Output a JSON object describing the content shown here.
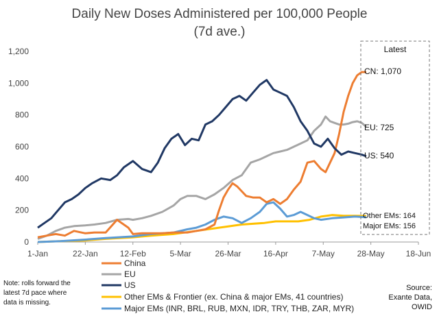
{
  "chart_data": {
    "type": "line",
    "title_line1": "Daily New Doses Administered per 100,000 People",
    "title_line2": "(7d ave.)",
    "x_ticks": [
      "1-Jan",
      "22-Jan",
      "12-Feb",
      "5-Mar",
      "26-Mar",
      "16-Apr",
      "7-May",
      "28-May",
      "18-Jun"
    ],
    "x_tick_days": [
      0,
      21,
      42,
      63,
      84,
      105,
      126,
      147,
      168
    ],
    "y_ticks": [
      "0",
      "200",
      "400",
      "600",
      "800",
      "1,000",
      "1,200"
    ],
    "ylim": [
      0,
      1200
    ],
    "xlim_days": [
      0,
      168
    ],
    "colors": {
      "China": "#ED7D31",
      "EU": "#A5A5A5",
      "US": "#203864",
      "Other EMs": "#FFC000",
      "Major EMs": "#5B9BD5"
    },
    "series": [
      {
        "name": "China",
        "x": [
          0,
          4,
          8,
          12,
          16,
          21,
          25,
          30,
          35,
          40,
          42,
          46,
          50,
          55,
          60,
          63,
          66,
          70,
          74,
          78,
          80,
          82,
          84,
          86,
          88,
          90,
          92,
          95,
          98,
          101,
          104,
          107,
          110,
          113,
          116,
          119,
          122,
          125,
          127,
          129,
          131,
          133,
          135,
          137,
          139,
          141,
          143,
          145
        ],
        "y": [
          30,
          40,
          50,
          40,
          70,
          55,
          60,
          60,
          140,
          90,
          50,
          55,
          55,
          55,
          60,
          60,
          60,
          70,
          80,
          110,
          200,
          280,
          330,
          370,
          350,
          320,
          290,
          280,
          280,
          250,
          270,
          240,
          270,
          330,
          380,
          500,
          510,
          460,
          440,
          500,
          560,
          680,
          820,
          920,
          1000,
          1050,
          1070,
          1070
        ]
      },
      {
        "name": "EU",
        "x": [
          0,
          4,
          8,
          12,
          16,
          21,
          25,
          30,
          35,
          40,
          42,
          46,
          50,
          55,
          60,
          63,
          66,
          70,
          74,
          78,
          82,
          86,
          90,
          94,
          98,
          101,
          104,
          107,
          110,
          113,
          116,
          119,
          122,
          125,
          127,
          129,
          131,
          133,
          135,
          137,
          139,
          141,
          143,
          145
        ],
        "y": [
          20,
          40,
          70,
          90,
          100,
          105,
          110,
          120,
          140,
          145,
          140,
          150,
          165,
          190,
          230,
          270,
          290,
          290,
          270,
          300,
          340,
          390,
          420,
          500,
          520,
          540,
          560,
          570,
          580,
          600,
          620,
          640,
          700,
          740,
          790,
          760,
          750,
          740,
          740,
          745,
          755,
          760,
          750,
          725
        ]
      },
      {
        "name": "US",
        "x": [
          0,
          3,
          6,
          9,
          12,
          15,
          18,
          21,
          24,
          28,
          32,
          35,
          38,
          42,
          46,
          50,
          53,
          56,
          59,
          62,
          65,
          68,
          71,
          74,
          77,
          80,
          83,
          86,
          89,
          92,
          95,
          98,
          101,
          104,
          107,
          110,
          113,
          116,
          119,
          122,
          125,
          128,
          131,
          134,
          137,
          140,
          143,
          145
        ],
        "y": [
          90,
          120,
          150,
          200,
          250,
          270,
          300,
          340,
          370,
          400,
          390,
          420,
          470,
          510,
          460,
          440,
          500,
          590,
          650,
          680,
          610,
          650,
          640,
          740,
          760,
          800,
          850,
          900,
          920,
          890,
          940,
          990,
          1020,
          960,
          940,
          920,
          850,
          760,
          700,
          620,
          600,
          650,
          590,
          550,
          570,
          560,
          550,
          540
        ]
      },
      {
        "name": "Other EMs & Frontier (ex. China & major EMs, 41 countries)",
        "x": [
          0,
          10,
          21,
          30,
          42,
          50,
          60,
          70,
          80,
          90,
          100,
          105,
          110,
          115,
          120,
          125,
          130,
          135,
          140,
          145
        ],
        "y": [
          0,
          5,
          10,
          20,
          30,
          40,
          50,
          70,
          90,
          110,
          120,
          130,
          130,
          130,
          140,
          160,
          170,
          165,
          165,
          164
        ]
      },
      {
        "name": "Major EMs (INR, BRL, RUB, MXN, IDR, TRY, THB, ZAR, MYR)",
        "x": [
          0,
          10,
          21,
          30,
          42,
          50,
          60,
          66,
          70,
          74,
          78,
          82,
          86,
          90,
          94,
          98,
          101,
          104,
          107,
          110,
          113,
          116,
          119,
          122,
          125,
          130,
          135,
          140,
          145
        ],
        "y": [
          0,
          5,
          15,
          25,
          35,
          50,
          60,
          80,
          90,
          110,
          140,
          160,
          150,
          120,
          150,
          190,
          240,
          250,
          210,
          160,
          170,
          190,
          170,
          150,
          140,
          150,
          155,
          160,
          156
        ]
      }
    ],
    "latest": {
      "heading": "Latest",
      "cn": "CN: 1,070",
      "eu": "EU: 725",
      "us": "US: 540",
      "other": "Other EMs: 164",
      "major": "Major EMs: 156"
    },
    "legend": [
      "China",
      "EU",
      "US",
      "Other EMs & Frontier (ex. China & major EMs, 41 countries)",
      "Major EMs (INR, BRL, RUB, MXN, IDR, TRY, THB, ZAR, MYR)"
    ],
    "note": [
      "Note: rolls forward the",
      "latest 7d pace where",
      "data is missing."
    ],
    "source": [
      "Source:",
      "Exante Data,",
      "OWID"
    ]
  }
}
